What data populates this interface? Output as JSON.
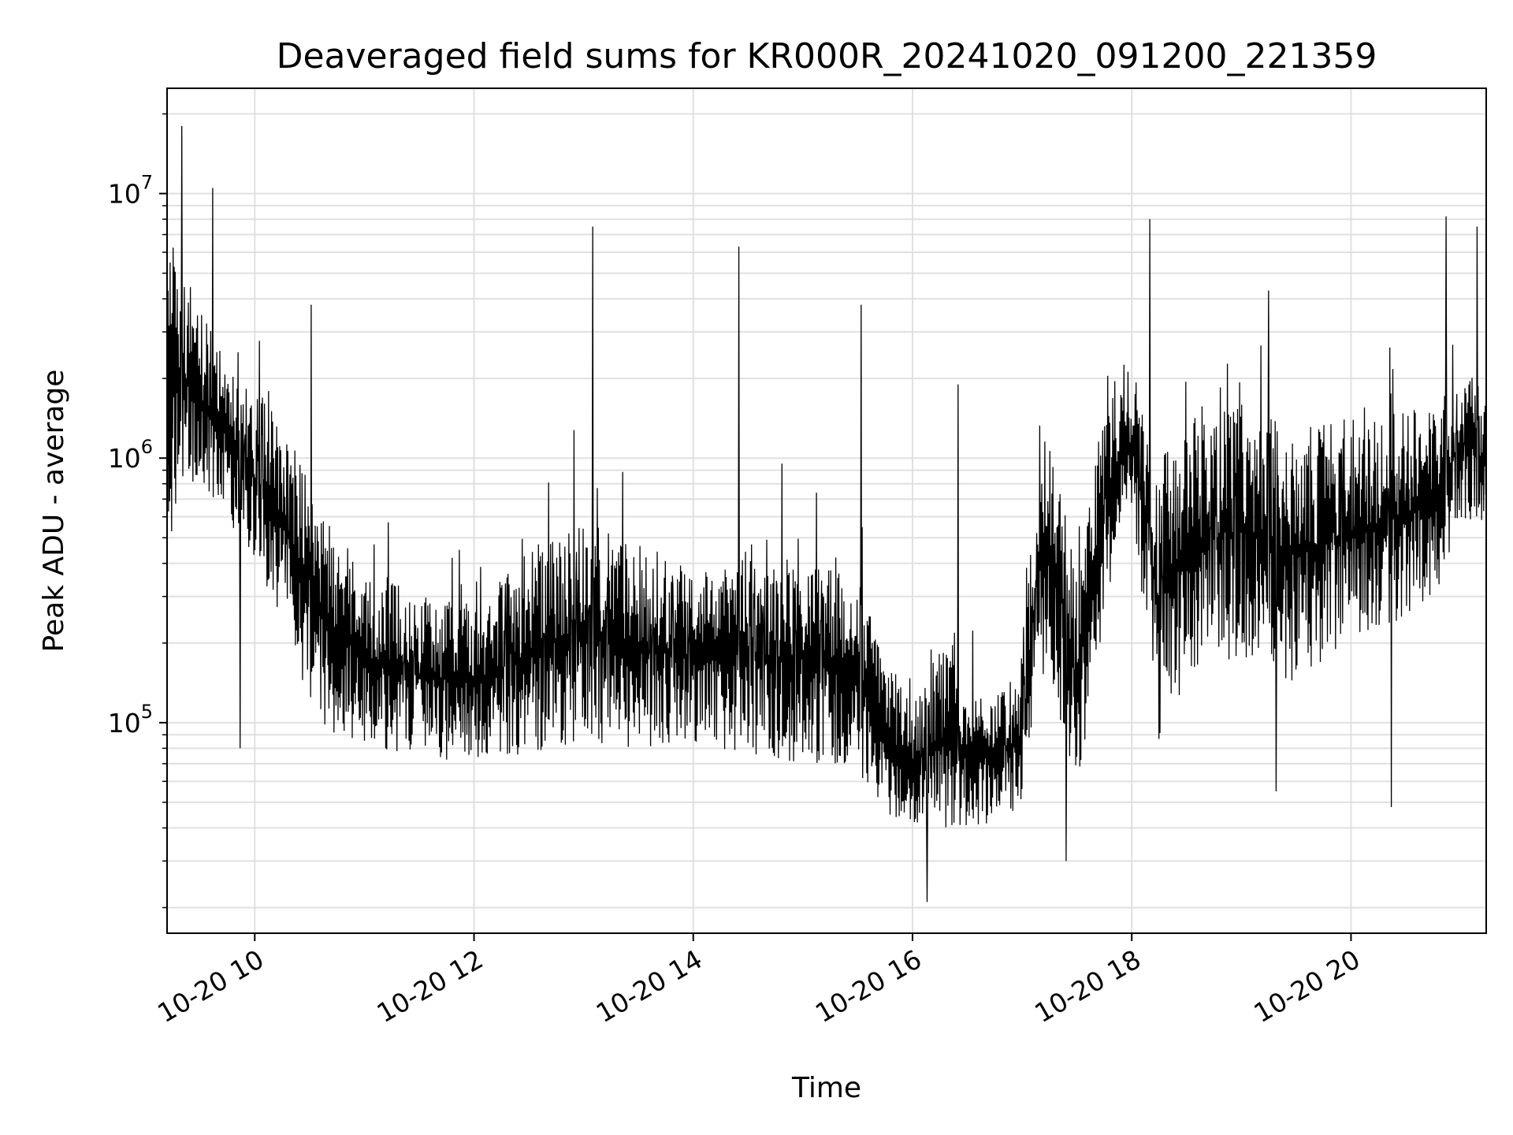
{
  "chart_data": {
    "type": "line",
    "title": "Deaveraged field sums for KR000R_20241020_091200_221359",
    "xlabel": "Time",
    "ylabel": "Peak ADU - average",
    "yscale": "log",
    "grid": true,
    "line_color": "#000000",
    "grid_color": "#e0e0e0",
    "xlim": [
      "2024-10-20 09:12",
      "2024-10-20 21:14"
    ],
    "ylim": [
      16000,
      25000000
    ],
    "x_ticks": [
      {
        "at": "2024-10-20 10:00",
        "label": "10-20 10"
      },
      {
        "at": "2024-10-20 12:00",
        "label": "10-20 12"
      },
      {
        "at": "2024-10-20 14:00",
        "label": "10-20 14"
      },
      {
        "at": "2024-10-20 16:00",
        "label": "10-20 16"
      },
      {
        "at": "2024-10-20 18:00",
        "label": "10-20 18"
      },
      {
        "at": "2024-10-20 20:00",
        "label": "10-20 20"
      }
    ],
    "y_ticks": [
      {
        "value": 100000,
        "base": "10",
        "exp": "5"
      },
      {
        "value": 1000000,
        "base": "10",
        "exp": "6"
      },
      {
        "value": 10000000,
        "base": "10",
        "exp": "7"
      }
    ],
    "series": [
      {
        "x": [
          "2024-10-20 09:12",
          "2024-10-20 09:20",
          "2024-10-20 09:30",
          "2024-10-20 09:40",
          "2024-10-20 09:50",
          "2024-10-20 10:00",
          "2024-10-20 10:15",
          "2024-10-20 10:30",
          "2024-10-20 10:45",
          "2024-10-20 11:00",
          "2024-10-20 11:30",
          "2024-10-20 12:00",
          "2024-10-20 12:30",
          "2024-10-20 13:00",
          "2024-10-20 13:30",
          "2024-10-20 14:00",
          "2024-10-20 14:30",
          "2024-10-20 15:00",
          "2024-10-20 15:30",
          "2024-10-20 15:45",
          "2024-10-20 16:00",
          "2024-10-20 16:15",
          "2024-10-20 16:30",
          "2024-10-20 16:45",
          "2024-10-20 17:00",
          "2024-10-20 17:10",
          "2024-10-20 17:20",
          "2024-10-20 17:30",
          "2024-10-20 17:45",
          "2024-10-20 18:00",
          "2024-10-20 18:15",
          "2024-10-20 18:30",
          "2024-10-20 19:00",
          "2024-10-20 19:30",
          "2024-10-20 20:00",
          "2024-10-20 20:30",
          "2024-10-20 20:45",
          "2024-10-20 21:00",
          "2024-10-20 21:14"
        ],
        "lo": [
          400000,
          800000,
          700000,
          600000,
          500000,
          400000,
          250000,
          100000,
          90000,
          80000,
          75000,
          70000,
          75000,
          85000,
          80000,
          85000,
          75000,
          70000,
          65000,
          45000,
          40000,
          38000,
          40000,
          42000,
          45000,
          160000,
          100000,
          55000,
          250000,
          600000,
          80000,
          150000,
          180000,
          140000,
          200000,
          250000,
          280000,
          600000,
          500000
        ],
        "hi": [
          8000000,
          5000000,
          4000000,
          3000000,
          2000000,
          1800000,
          1500000,
          800000,
          500000,
          400000,
          300000,
          280000,
          450000,
          600000,
          450000,
          380000,
          450000,
          420000,
          350000,
          180000,
          120000,
          200000,
          150000,
          130000,
          170000,
          1500000,
          1100000,
          350000,
          1700000,
          2200000,
          1000000,
          1400000,
          1600000,
          1300000,
          1400000,
          1500000,
          1600000,
          2200000,
          1800000
        ],
        "spikes": [
          {
            "x": "2024-10-20 09:20",
            "y": 18000000
          },
          {
            "x": "2024-10-20 09:37",
            "y": 10500000
          },
          {
            "x": "2024-10-20 09:52",
            "y": 80000
          },
          {
            "x": "2024-10-20 10:31",
            "y": 3800000
          },
          {
            "x": "2024-10-20 13:05",
            "y": 7500000
          },
          {
            "x": "2024-10-20 14:25",
            "y": 6300000
          },
          {
            "x": "2024-10-20 15:32",
            "y": 3800000
          },
          {
            "x": "2024-10-20 16:08",
            "y": 21000
          },
          {
            "x": "2024-10-20 16:25",
            "y": 1900000
          },
          {
            "x": "2024-10-20 17:24",
            "y": 30000
          },
          {
            "x": "2024-10-20 18:10",
            "y": 8000000
          },
          {
            "x": "2024-10-20 19:15",
            "y": 4300000
          },
          {
            "x": "2024-10-20 19:19",
            "y": 55000
          },
          {
            "x": "2024-10-20 20:22",
            "y": 48000
          },
          {
            "x": "2024-10-20 20:52",
            "y": 8200000
          },
          {
            "x": "2024-10-20 21:09",
            "y": 7500000
          }
        ]
      }
    ]
  }
}
